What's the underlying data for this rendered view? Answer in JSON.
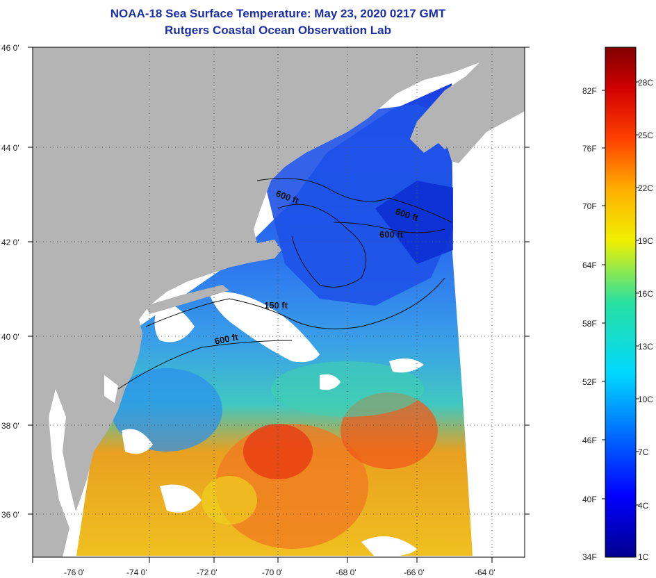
{
  "title": "NOAA-18 Sea Surface Temperature:  May 23, 2020 0217 GMT",
  "subtitle": "Rutgers Coastal Ocean Observation Lab",
  "map": {
    "lat_labels": [
      "46 0'",
      "44 0'",
      "42 0'",
      "40 0'",
      "38 0'",
      "36 0'"
    ],
    "lon_labels": [
      "-76 0'",
      "-74 0'",
      "-72 0'",
      "-70 0'",
      "-68 0'",
      "-66 0'",
      "-64 0'"
    ],
    "contour_labels": [
      "600 ft",
      "600 ft",
      "600 ft",
      "150 ft",
      "600 ft"
    ],
    "colors": {
      "land": "#b4b4b4",
      "nodata": "#ffffff",
      "cold": "#1a3fe0",
      "warm": "#e8461a"
    }
  },
  "colorbar": {
    "fahrenheit": [
      "82F",
      "76F",
      "70F",
      "64F",
      "58F",
      "52F",
      "46F",
      "40F",
      "34F"
    ],
    "celsius": [
      "28C",
      "25C",
      "22C",
      "19C",
      "16C",
      "13C",
      "10C",
      "7C",
      "4C",
      "1C"
    ]
  }
}
